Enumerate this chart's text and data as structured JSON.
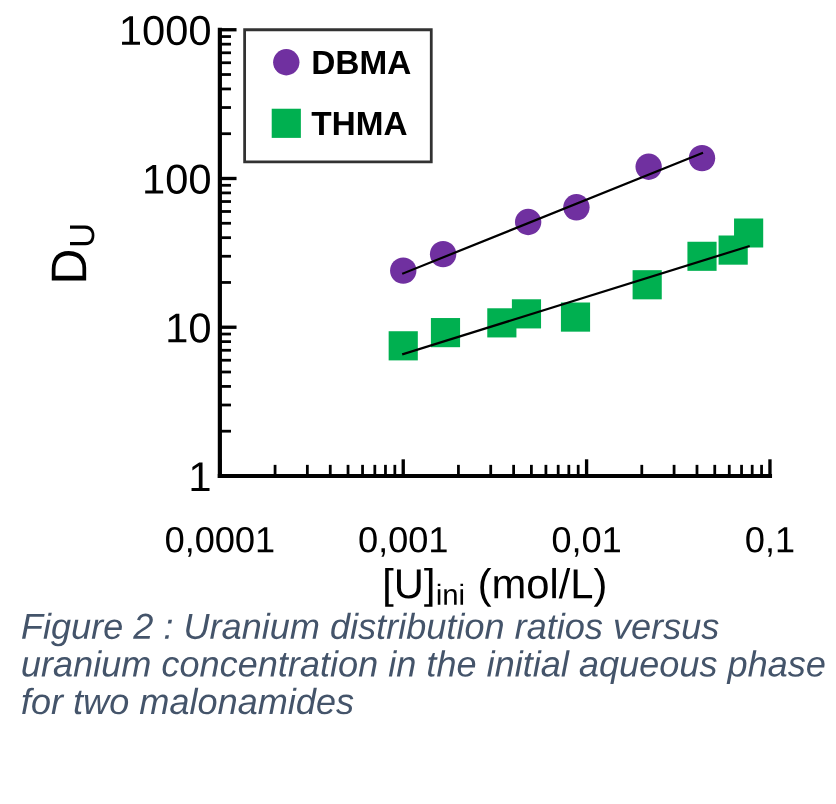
{
  "chart_data": {
    "type": "scatter",
    "xlabel": "[U]$_{ini}$ (mol/L)",
    "ylabel": "D$_{U}$",
    "log": "xy",
    "xlim": [
      0.0001,
      0.1
    ],
    "ylim": [
      1,
      1000
    ],
    "xticks": [
      {
        "value": 0.0001,
        "label": "0,0001"
      },
      {
        "value": 0.001,
        "label": "0,001"
      },
      {
        "value": 0.01,
        "label": "0,01"
      },
      {
        "value": 0.1,
        "label": "0,1"
      }
    ],
    "yticks": [
      1,
      10,
      100,
      1000
    ],
    "grid": false,
    "legend": "top left",
    "series": [
      {
        "name": "DBMA",
        "marker": "circle",
        "color": "#7030a0",
        "x": [
          0.001,
          0.00165,
          0.0048,
          0.0088,
          0.0218,
          0.0426
        ],
        "values": [
          24,
          31,
          51,
          64,
          120,
          137
        ]
      },
      {
        "name": "THMA",
        "marker": "square",
        "color": "#00b050",
        "x": [
          0.001,
          0.0017,
          0.00345,
          0.0047,
          0.0087,
          0.0214,
          0.0426,
          0.063,
          0.0765
        ],
        "values": [
          7.5,
          9.2,
          10.7,
          12.3,
          11.7,
          19.3,
          30,
          33,
          43
        ]
      },
      {
        "type": "line",
        "marker": "none",
        "color": "#000000",
        "x": [
          0.001,
          0.0426
        ],
        "values": [
          23,
          148
        ]
      },
      {
        "type": "line",
        "marker": "none",
        "color": "#000000",
        "x": [
          0.001,
          0.0765
        ],
        "values": [
          6.6,
          35
        ]
      }
    ],
    "annotations": [
      "Figure 2 : Uranium distribution ratios versus uranium concentration in the initial aqueous phase for two malonamides"
    ]
  }
}
